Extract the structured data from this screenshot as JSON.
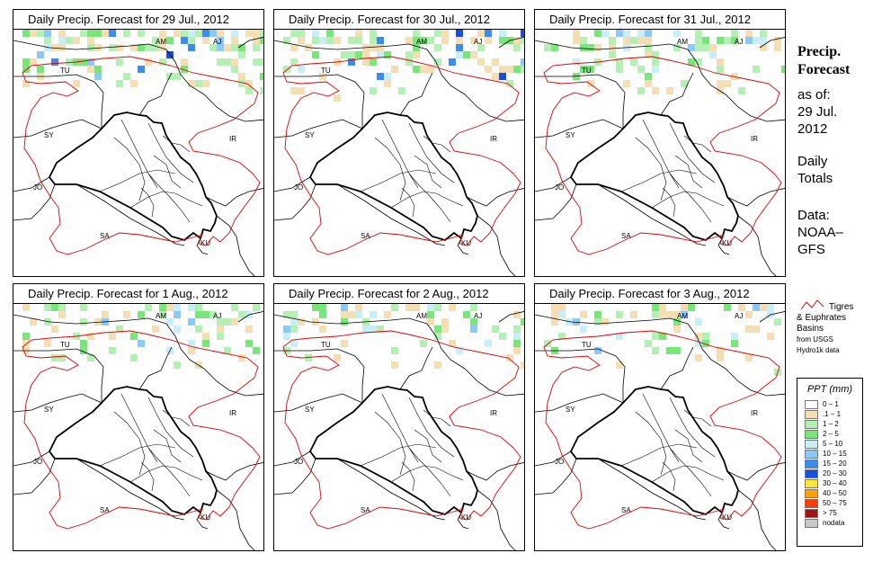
{
  "panels": [
    {
      "title": "Daily Precip. Forecast for  29 Jul., 2012",
      "intensity": 3
    },
    {
      "title": "Daily Precip. Forecast for  30 Jul., 2012",
      "intensity": 3
    },
    {
      "title": "Daily Precip. Forecast for  31 Jul., 2012",
      "intensity": 2
    },
    {
      "title": "Daily Precip. Forecast for  1 Aug., 2012",
      "intensity": 2
    },
    {
      "title": "Daily Precip. Forecast for  2 Aug., 2012",
      "intensity": 1
    },
    {
      "title": "Daily Precip. Forecast for  3 Aug., 2012",
      "intensity": 1
    }
  ],
  "map_labels": [
    "AM",
    "AJ",
    "TU",
    "SY",
    "IR",
    "JO",
    "SA",
    "KU"
  ],
  "side": {
    "title_line1": "Precip.",
    "title_line2": "Forecast",
    "asof": "as of:",
    "date_line1": "29 Jul.",
    "date_line2": "2012",
    "daily_line1": "Daily",
    "daily_line2": "Totals",
    "data_line1": "Data:",
    "data_line2": "NOAA–",
    "data_line3": "GFS"
  },
  "basin": {
    "line1": "Tigres",
    "line2": "& Euphrates",
    "line3": "Basins",
    "line4": "from USGS",
    "line5": "Hydro1k data"
  },
  "legend": {
    "title": "PPT (mm)",
    "items": [
      {
        "label": "0 – 1",
        "color": "#ffffff"
      },
      {
        "label": ".1 – 1",
        "color": "#f5deb3"
      },
      {
        "label": "1 – 2",
        "color": "#b4f0b4"
      },
      {
        "label": "2 – 5",
        "color": "#78e678"
      },
      {
        "label": "5 – 10",
        "color": "#c8eef8"
      },
      {
        "label": "10 – 15",
        "color": "#8cc8f8"
      },
      {
        "label": "15 – 20",
        "color": "#3c8cf0"
      },
      {
        "label": "20 – 30",
        "color": "#1450dc"
      },
      {
        "label": "30 – 40",
        "color": "#ffe632"
      },
      {
        "label": "40 – 50",
        "color": "#ffa000"
      },
      {
        "label": "50 – 75",
        "color": "#ff3c00"
      },
      {
        "label": "> 75",
        "color": "#a01414"
      },
      {
        "label": "nodata",
        "color": "#c8c8c8"
      }
    ]
  }
}
